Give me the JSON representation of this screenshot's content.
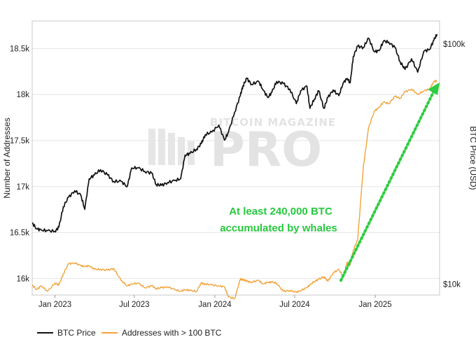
{
  "chart_data": {
    "type": "line",
    "watermark": {
      "top": "BITCOIN MAGAZINE",
      "bottom": "PRO"
    },
    "x_ticks": [
      "Jan 2023",
      "Jul 2023",
      "Jan 2024",
      "Jul 2024",
      "Jan 2025"
    ],
    "y_left": {
      "label": "Number of Addresses",
      "ticks": [
        "16k",
        "16.5k",
        "17k",
        "17.5k",
        "18k",
        "18.5k"
      ],
      "range": [
        15820,
        18800
      ]
    },
    "y_right": {
      "label": "BTC Price (USD)",
      "ticks": [
        "$10k",
        "$100k"
      ],
      "scale": "log",
      "range": [
        9000,
        125000
      ]
    },
    "grid": "horizontal",
    "legend_position": "bottom-left",
    "annotation": {
      "line1": "At least 240,000 BTC",
      "line2": "accumulated by whales",
      "color": "#27c93f"
    },
    "series": [
      {
        "name": "BTC Price",
        "axis": "right",
        "color": "#111111",
        "x": [
          "2022-11-10",
          "2022-11-20",
          "2022-12-01",
          "2022-12-15",
          "2023-01-01",
          "2023-01-10",
          "2023-01-20",
          "2023-02-01",
          "2023-02-15",
          "2023-03-01",
          "2023-03-10",
          "2023-03-20",
          "2023-04-01",
          "2023-04-15",
          "2023-05-01",
          "2023-05-15",
          "2023-06-01",
          "2023-06-15",
          "2023-06-25",
          "2023-07-10",
          "2023-07-25",
          "2023-08-10",
          "2023-08-20",
          "2023-09-01",
          "2023-09-15",
          "2023-10-01",
          "2023-10-15",
          "2023-10-25",
          "2023-11-05",
          "2023-11-20",
          "2023-12-01",
          "2023-12-10",
          "2023-12-25",
          "2024-01-10",
          "2024-01-23",
          "2024-02-01",
          "2024-02-15",
          "2024-02-28",
          "2024-03-05",
          "2024-03-14",
          "2024-03-25",
          "2024-04-10",
          "2024-04-20",
          "2024-05-01",
          "2024-05-10",
          "2024-05-21",
          "2024-06-05",
          "2024-06-20",
          "2024-07-05",
          "2024-07-15",
          "2024-07-29",
          "2024-08-05",
          "2024-08-15",
          "2024-08-25",
          "2024-09-06",
          "2024-09-15",
          "2024-09-27",
          "2024-10-10",
          "2024-10-20",
          "2024-10-29",
          "2024-11-05",
          "2024-11-12",
          "2024-11-22",
          "2024-12-05",
          "2024-12-17",
          "2024-12-30",
          "2025-01-10",
          "2025-01-20",
          "2025-02-01",
          "2025-02-15",
          "2025-02-27",
          "2025-03-10",
          "2025-03-25",
          "2025-04-08",
          "2025-04-22",
          "2025-05-05",
          "2025-05-15",
          "2025-05-22"
        ],
        "y": [
          18000,
          17000,
          16800,
          16700,
          16600,
          17300,
          21000,
          23000,
          24500,
          23500,
          20500,
          27500,
          28500,
          30000,
          28500,
          26800,
          26800,
          25500,
          30500,
          30500,
          29500,
          29000,
          26000,
          25800,
          26500,
          27000,
          27500,
          34500,
          35000,
          36500,
          38500,
          42000,
          43000,
          46000,
          39800,
          43000,
          52000,
          61000,
          67000,
          72000,
          68000,
          70000,
          64500,
          60000,
          63000,
          70000,
          68500,
          65000,
          56500,
          64000,
          67000,
          54000,
          59000,
          64000,
          54000,
          60000,
          64500,
          61000,
          69000,
          72000,
          69000,
          89000,
          98000,
          97000,
          106000,
          93000,
          94000,
          103000,
          102000,
          97000,
          84500,
          78500,
          87000,
          76500,
          93500,
          95000,
          104000,
          110000
        ]
      },
      {
        "name": "Addresses with > 100 BTC",
        "axis": "left",
        "color": "#f2a33a",
        "x": [
          "2022-11-10",
          "2022-11-20",
          "2022-12-01",
          "2022-12-15",
          "2023-01-01",
          "2023-01-10",
          "2023-01-20",
          "2023-02-01",
          "2023-02-15",
          "2023-03-01",
          "2023-03-10",
          "2023-03-20",
          "2023-04-01",
          "2023-04-15",
          "2023-05-01",
          "2023-05-15",
          "2023-06-01",
          "2023-06-15",
          "2023-06-25",
          "2023-07-10",
          "2023-07-25",
          "2023-08-10",
          "2023-08-20",
          "2023-09-01",
          "2023-09-15",
          "2023-10-01",
          "2023-10-15",
          "2023-10-25",
          "2023-11-05",
          "2023-11-20",
          "2023-12-01",
          "2023-12-10",
          "2023-12-25",
          "2024-01-10",
          "2024-01-23",
          "2024-02-01",
          "2024-02-15",
          "2024-02-28",
          "2024-03-05",
          "2024-03-14",
          "2024-03-25",
          "2024-04-10",
          "2024-04-20",
          "2024-05-01",
          "2024-05-10",
          "2024-05-21",
          "2024-06-05",
          "2024-06-20",
          "2024-07-05",
          "2024-07-15",
          "2024-07-29",
          "2024-08-05",
          "2024-08-15",
          "2024-08-25",
          "2024-09-06",
          "2024-09-15",
          "2024-09-27",
          "2024-10-10",
          "2024-10-20",
          "2024-10-29",
          "2024-11-05",
          "2024-11-12",
          "2024-11-22",
          "2024-12-05",
          "2024-12-17",
          "2024-12-30",
          "2025-01-10",
          "2025-01-20",
          "2025-02-01",
          "2025-02-15",
          "2025-02-27",
          "2025-03-10",
          "2025-03-25",
          "2025-04-08",
          "2025-04-22",
          "2025-05-05",
          "2025-05-15",
          "2025-05-22"
        ],
        "y": [
          15930,
          15880,
          15920,
          15860,
          15950,
          15930,
          16050,
          16160,
          16170,
          16140,
          16130,
          16140,
          16100,
          16100,
          16090,
          16110,
          15980,
          15920,
          15940,
          15950,
          15900,
          15920,
          15890,
          15900,
          15910,
          15880,
          15860,
          15880,
          15870,
          15860,
          15950,
          15940,
          15930,
          15920,
          15910,
          15800,
          15780,
          15990,
          15990,
          15970,
          15960,
          15980,
          15940,
          15960,
          15960,
          15950,
          15860,
          15870,
          15850,
          15870,
          15900,
          15930,
          15970,
          15990,
          16020,
          15970,
          16060,
          16100,
          16020,
          16180,
          16150,
          16310,
          16420,
          17220,
          17640,
          17820,
          17860,
          17920,
          17900,
          17980,
          17960,
          18030,
          18060,
          18000,
          18040,
          18060,
          18140,
          18150
        ]
      }
    ]
  },
  "legend": [
    {
      "label": "BTC Price",
      "color": "#111111"
    },
    {
      "label": "Addresses with > 100 BTC",
      "color": "#f2a33a"
    }
  ]
}
